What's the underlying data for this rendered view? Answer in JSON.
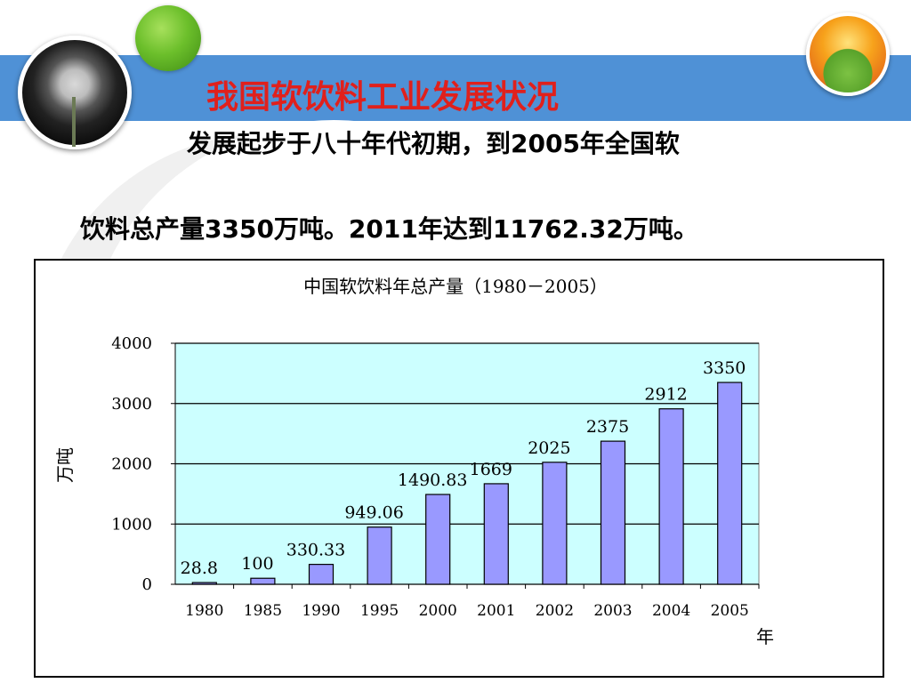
{
  "slide": {
    "title": "我国软饮料工业发展状况",
    "line1": "发展起步于八十年代初期，到2005年全国软",
    "line2": "饮料总产量3350万吨。2011年达到11762.32万吨。"
  },
  "colors": {
    "title": "#e0201c",
    "band": "#4f91d6",
    "plot_bg": "#ccffff",
    "bar": "#9999ff"
  },
  "icons": [
    "dandelion-photo",
    "green-ball",
    "flower-photo"
  ],
  "chart_data": {
    "type": "bar",
    "title": "中国软饮料年总产量（1980－2005）",
    "xlabel": "年",
    "ylabel": "万吨",
    "categories": [
      "1980",
      "1985",
      "1990",
      "1995",
      "2000",
      "2001",
      "2002",
      "2003",
      "2004",
      "2005"
    ],
    "values": [
      28.8,
      100,
      330.33,
      949.06,
      1490.83,
      1669,
      2025,
      2375,
      2912,
      3350
    ],
    "value_labels": [
      "28.8",
      "100",
      "330.33",
      "949.06",
      "1490.83",
      "1669",
      "2025",
      "2375",
      "2912",
      "3350"
    ],
    "ylim": [
      0,
      4000
    ],
    "yticks": [
      0,
      1000,
      2000,
      3000,
      4000
    ],
    "grid": true,
    "legend": "none"
  }
}
